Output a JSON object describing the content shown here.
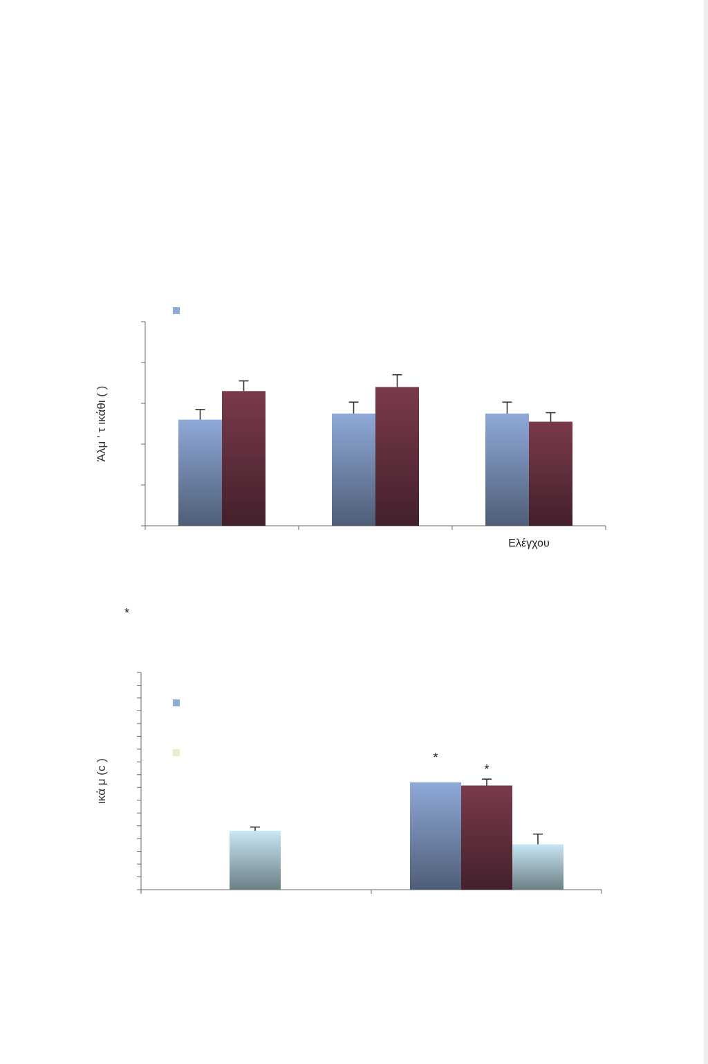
{
  "chart_data": [
    {
      "type": "bar",
      "ylabel": "Άλμ   ' τ   ικάθι   (   )",
      "categories": [
        "",
        "",
        "Ελέγχου"
      ],
      "ylim": [
        0,
        5
      ],
      "yticks": [
        0,
        1,
        2,
        3,
        4,
        5
      ],
      "legend": {
        "placement": "top-left"
      },
      "grid": false,
      "series": [
        {
          "color": "#8fa9d8",
          "values": [
            2.6,
            2.75,
            2.75
          ],
          "errors": [
            0.25,
            0.28,
            0.28
          ]
        },
        {
          "color": "#7a3a4c",
          "values": [
            3.3,
            3.4,
            2.55
          ],
          "errors": [
            0.25,
            0.3,
            0.22
          ]
        }
      ]
    },
    {
      "type": "bar",
      "ylabel": "ικά   μ   (c   )",
      "categories": [
        "",
        ""
      ],
      "ylim": [
        0,
        17
      ],
      "yticks": [
        0,
        1,
        2,
        3,
        4,
        5,
        6,
        7,
        8,
        9,
        10,
        11,
        12,
        13,
        14,
        15,
        16,
        17
      ],
      "legend": {
        "placement": "top-left"
      },
      "grid": false,
      "series": [
        {
          "color": "#8fa9d8",
          "values": [
            null,
            8.4
          ],
          "errors": [
            null,
            0
          ],
          "marks": [
            "",
            "*"
          ]
        },
        {
          "color": "#7a3a4c",
          "values": [
            null,
            8.15
          ],
          "errors": [
            null,
            0.5
          ],
          "marks": [
            "",
            "*"
          ]
        },
        {
          "color": "#c7e7f3",
          "values": [
            4.6,
            3.55
          ],
          "errors": [
            0.3,
            0.8
          ],
          "marks": [
            "",
            ""
          ]
        }
      ],
      "legend_swatch_colors": [
        "#8fa9d8",
        "#efeccb"
      ]
    }
  ],
  "stray_mark": "*"
}
